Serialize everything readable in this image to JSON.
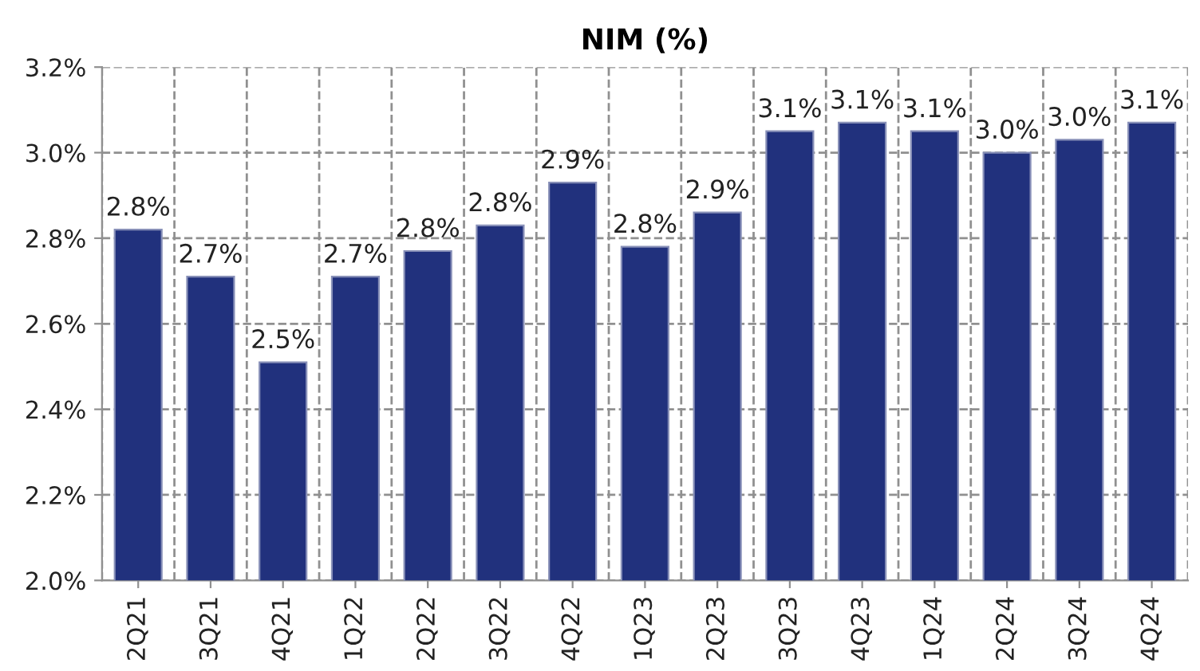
{
  "chart_data": {
    "type": "bar",
    "title": "NIM (%)",
    "categories": [
      "2Q21",
      "3Q21",
      "4Q21",
      "1Q22",
      "2Q22",
      "3Q22",
      "4Q22",
      "1Q23",
      "2Q23",
      "3Q23",
      "4Q23",
      "1Q24",
      "2Q24",
      "3Q24",
      "4Q24"
    ],
    "values": [
      2.82,
      2.71,
      2.51,
      2.71,
      2.77,
      2.83,
      2.93,
      2.78,
      2.86,
      3.05,
      3.07,
      3.05,
      3.0,
      3.03,
      3.07
    ],
    "value_labels": [
      "2.8%",
      "2.7%",
      "2.5%",
      "2.7%",
      "2.8%",
      "2.8%",
      "2.9%",
      "2.8%",
      "2.9%",
      "3.1%",
      "3.1%",
      "3.1%",
      "3.0%",
      "3.0%",
      "3.1%"
    ],
    "color": "#21317d",
    "ylim": [
      2.0,
      3.2
    ],
    "yticks": [
      {
        "value": 2.0,
        "label": "2.0%"
      },
      {
        "value": 2.2,
        "label": "2.2%"
      },
      {
        "value": 2.4,
        "label": "2.4%"
      },
      {
        "value": 2.6,
        "label": "2.6%"
      },
      {
        "value": 2.8,
        "label": "2.8%"
      },
      {
        "value": 3.0,
        "label": "3.0%"
      },
      {
        "value": 3.2,
        "label": "3.2%"
      }
    ],
    "grid": true
  }
}
